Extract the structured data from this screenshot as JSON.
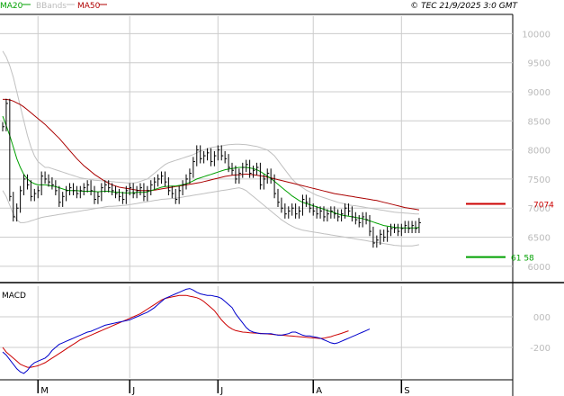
{
  "header": {
    "legend": [
      {
        "label": "MA20",
        "color": "#00a000"
      },
      {
        "label": "BBands",
        "color": "#bbbbbb"
      },
      {
        "label": "MA50",
        "color": "#b00000"
      }
    ],
    "copyright": "© TEC 21/9/2025 3:0 GMT"
  },
  "colors": {
    "price": "#000000",
    "ma20": "#00a000",
    "ma50": "#aa0000",
    "bbands": "#c0c0c0",
    "grid": "#cccccc",
    "macd": "#0000cc",
    "signal": "#cc0000",
    "resistance": "#cc0000",
    "support": "#00a000"
  },
  "chart_data": [
    {
      "type": "line",
      "title": "",
      "y_ticks": [
        "10000",
        "9500",
        "9000",
        "8500",
        "8000",
        "7500",
        "7000",
        "6500",
        "6000"
      ],
      "y_tick_values": [
        10000,
        9500,
        9000,
        8500,
        8000,
        7500,
        7000,
        6500,
        6000
      ],
      "ylim": [
        5750,
        10300
      ],
      "x_range": [
        0,
        130
      ],
      "x_labels": [
        {
          "label": "M",
          "x": 10
        },
        {
          "label": "J",
          "x": 36
        },
        {
          "label": "J",
          "x": 61
        },
        {
          "label": "A",
          "x": 88
        },
        {
          "label": "S",
          "x": 113
        }
      ],
      "price_close": [
        8400,
        8800,
        7200,
        6850,
        7000,
        7300,
        7500,
        7400,
        7200,
        7250,
        7300,
        7550,
        7500,
        7450,
        7400,
        7300,
        7100,
        7200,
        7300,
        7350,
        7300,
        7250,
        7300,
        7350,
        7400,
        7300,
        7150,
        7200,
        7350,
        7400,
        7350,
        7300,
        7250,
        7200,
        7150,
        7300,
        7350,
        7250,
        7300,
        7350,
        7200,
        7300,
        7400,
        7450,
        7500,
        7550,
        7450,
        7300,
        7250,
        7150,
        7300,
        7400,
        7500,
        7600,
        7800,
        8000,
        7850,
        7900,
        7950,
        7800,
        7900,
        8000,
        7900,
        7850,
        7700,
        7650,
        7500,
        7600,
        7700,
        7750,
        7600,
        7650,
        7700,
        7400,
        7500,
        7600,
        7500,
        7250,
        7100,
        7000,
        6900,
        6950,
        7000,
        6900,
        6950,
        7150,
        7100,
        7000,
        6950,
        6900,
        6950,
        6850,
        6900,
        6950,
        6900,
        6850,
        6900,
        7000,
        6950,
        6850,
        6800,
        6750,
        6850,
        6800,
        6600,
        6400,
        6450,
        6550,
        6500,
        6600,
        6650,
        6650,
        6600,
        6650,
        6700,
        6650,
        6700,
        6650,
        6750
      ],
      "ma20": [
        8580,
        8420,
        8250,
        8050,
        7850,
        7700,
        7580,
        7500,
        7450,
        7420,
        7400,
        7400,
        7400,
        7390,
        7380,
        7370,
        7350,
        7330,
        7310,
        7300,
        7300,
        7300,
        7295,
        7290,
        7290,
        7290,
        7285,
        7280,
        7285,
        7290,
        7290,
        7280,
        7275,
        7270,
        7265,
        7260,
        7260,
        7265,
        7270,
        7270,
        7270,
        7280,
        7300,
        7320,
        7340,
        7360,
        7370,
        7375,
        7380,
        7380,
        7390,
        7400,
        7420,
        7440,
        7470,
        7500,
        7520,
        7540,
        7560,
        7580,
        7600,
        7620,
        7640,
        7660,
        7670,
        7680,
        7690,
        7700,
        7700,
        7700,
        7690,
        7680,
        7660,
        7630,
        7590,
        7550,
        7510,
        7460,
        7410,
        7360,
        7310,
        7260,
        7210,
        7170,
        7130,
        7100,
        7080,
        7060,
        7040,
        7020,
        7000,
        6980,
        6960,
        6940,
        6920,
        6900,
        6880,
        6870,
        6860,
        6850,
        6840,
        6830,
        6820,
        6800,
        6780,
        6760,
        6740,
        6720,
        6700,
        6690,
        6680,
        6670,
        6665,
        6660,
        6660,
        6660,
        6660,
        6660,
        6670
      ],
      "ma50": [
        8870,
        8870,
        8860,
        8840,
        8810,
        8780,
        8740,
        8690,
        8640,
        8590,
        8540,
        8490,
        8440,
        8380,
        8320,
        8260,
        8200,
        8130,
        8060,
        7990,
        7920,
        7850,
        7790,
        7730,
        7680,
        7630,
        7580,
        7540,
        7500,
        7460,
        7430,
        7400,
        7380,
        7360,
        7350,
        7340,
        7330,
        7320,
        7310,
        7300,
        7300,
        7300,
        7300,
        7310,
        7320,
        7330,
        7340,
        7350,
        7360,
        7370,
        7380,
        7390,
        7400,
        7410,
        7420,
        7430,
        7440,
        7455,
        7470,
        7485,
        7500,
        7515,
        7530,
        7545,
        7555,
        7565,
        7570,
        7575,
        7580,
        7585,
        7580,
        7575,
        7565,
        7555,
        7545,
        7535,
        7520,
        7505,
        7490,
        7475,
        7460,
        7445,
        7430,
        7415,
        7400,
        7385,
        7370,
        7355,
        7340,
        7325,
        7310,
        7295,
        7280,
        7265,
        7250,
        7240,
        7230,
        7220,
        7210,
        7200,
        7190,
        7180,
        7170,
        7160,
        7150,
        7140,
        7130,
        7115,
        7100,
        7085,
        7070,
        7055,
        7040,
        7025,
        7010,
        7000,
        6990,
        6980,
        6970
      ],
      "bb_upper": [
        9700,
        9600,
        9450,
        9250,
        9000,
        8750,
        8500,
        8250,
        8050,
        7900,
        7800,
        7750,
        7700,
        7700,
        7680,
        7660,
        7640,
        7620,
        7600,
        7580,
        7560,
        7540,
        7520,
        7510,
        7500,
        7490,
        7480,
        7475,
        7470,
        7465,
        7460,
        7455,
        7450,
        7445,
        7440,
        7435,
        7430,
        7430,
        7440,
        7460,
        7480,
        7500,
        7550,
        7600,
        7650,
        7700,
        7750,
        7780,
        7800,
        7820,
        7840,
        7860,
        7880,
        7900,
        7920,
        7950,
        7980,
        8000,
        8020,
        8040,
        8050,
        8060,
        8070,
        8080,
        8090,
        8095,
        8100,
        8100,
        8095,
        8090,
        8080,
        8070,
        8060,
        8040,
        8020,
        8000,
        7950,
        7900,
        7820,
        7740,
        7660,
        7580,
        7500,
        7440,
        7390,
        7350,
        7310,
        7280,
        7250,
        7220,
        7200,
        7180,
        7160,
        7140,
        7120,
        7100,
        7085,
        7070,
        7055,
        7045,
        7040,
        7030,
        7020,
        7010,
        7000,
        6990,
        6980,
        6970,
        6960,
        6950,
        6940,
        6930,
        6925,
        6920,
        6915,
        6910,
        6905,
        6900,
        6900
      ],
      "bb_lower": [
        7300,
        7200,
        7050,
        6900,
        6800,
        6750,
        6750,
        6760,
        6780,
        6800,
        6820,
        6840,
        6850,
        6860,
        6870,
        6880,
        6890,
        6900,
        6910,
        6920,
        6930,
        6940,
        6950,
        6960,
        6970,
        6980,
        6990,
        7000,
        7010,
        7020,
        7030,
        7030,
        7035,
        7040,
        7045,
        7050,
        7060,
        7070,
        7080,
        7090,
        7100,
        7110,
        7120,
        7130,
        7140,
        7150,
        7155,
        7160,
        7165,
        7170,
        7180,
        7190,
        7200,
        7210,
        7220,
        7230,
        7240,
        7250,
        7260,
        7270,
        7280,
        7290,
        7300,
        7310,
        7320,
        7330,
        7340,
        7350,
        7330,
        7300,
        7250,
        7200,
        7150,
        7100,
        7050,
        7000,
        6950,
        6900,
        6850,
        6800,
        6760,
        6720,
        6690,
        6660,
        6640,
        6620,
        6610,
        6600,
        6590,
        6580,
        6570,
        6560,
        6550,
        6540,
        6530,
        6520,
        6510,
        6500,
        6490,
        6480,
        6470,
        6460,
        6450,
        6440,
        6430,
        6420,
        6410,
        6400,
        6390,
        6380,
        6370,
        6360,
        6355,
        6350,
        6350,
        6350,
        6350,
        6360,
        6370
      ],
      "resistance": {
        "value": 7074,
        "label": "7074"
      },
      "support": {
        "value": 6158,
        "label": "61 58"
      }
    },
    {
      "type": "line",
      "title": "MACD",
      "y_ticks": [
        "000",
        "-200"
      ],
      "y_tick_values": [
        0,
        -200
      ],
      "ylim": [
        -400,
        200
      ],
      "x_range": [
        0,
        130
      ],
      "macd": [
        -230,
        -250,
        -280,
        -310,
        -340,
        -360,
        -370,
        -350,
        -320,
        -300,
        -290,
        -280,
        -270,
        -250,
        -220,
        -200,
        -180,
        -170,
        -160,
        -150,
        -140,
        -130,
        -120,
        -110,
        -100,
        -95,
        -85,
        -75,
        -65,
        -55,
        -50,
        -45,
        -40,
        -35,
        -30,
        -25,
        -20,
        -10,
        0,
        10,
        20,
        30,
        45,
        60,
        80,
        100,
        120,
        130,
        140,
        150,
        160,
        170,
        180,
        185,
        175,
        160,
        150,
        145,
        140,
        140,
        135,
        130,
        120,
        100,
        80,
        60,
        20,
        -10,
        -40,
        -70,
        -90,
        -100,
        -105,
        -110,
        -110,
        -110,
        -110,
        -115,
        -120,
        -120,
        -115,
        -110,
        -100,
        -100,
        -110,
        -120,
        -125,
        -125,
        -130,
        -135,
        -140,
        -150,
        -160,
        -170,
        -175,
        -170,
        -160,
        -150,
        -140,
        -130,
        -120,
        -110,
        -100,
        -90,
        -80
      ],
      "signal": [
        -200,
        -230,
        -250,
        -270,
        -290,
        -310,
        -320,
        -330,
        -330,
        -325,
        -320,
        -310,
        -300,
        -285,
        -270,
        -255,
        -240,
        -225,
        -210,
        -195,
        -180,
        -165,
        -150,
        -140,
        -130,
        -120,
        -110,
        -100,
        -90,
        -80,
        -70,
        -60,
        -50,
        -40,
        -30,
        -20,
        -10,
        0,
        10,
        20,
        35,
        50,
        65,
        80,
        95,
        110,
        120,
        125,
        130,
        135,
        140,
        140,
        140,
        135,
        130,
        125,
        115,
        100,
        80,
        60,
        40,
        10,
        -20,
        -45,
        -65,
        -80,
        -90,
        -95,
        -100,
        -102,
        -104,
        -106,
        -107,
        -108,
        -110,
        -112,
        -114,
        -116,
        -118,
        -120,
        -122,
        -124,
        -126,
        -128,
        -130,
        -132,
        -134,
        -136,
        -138,
        -140,
        -142,
        -140,
        -135,
        -130,
        -122,
        -115,
        -108,
        -100,
        -92
      ]
    }
  ]
}
